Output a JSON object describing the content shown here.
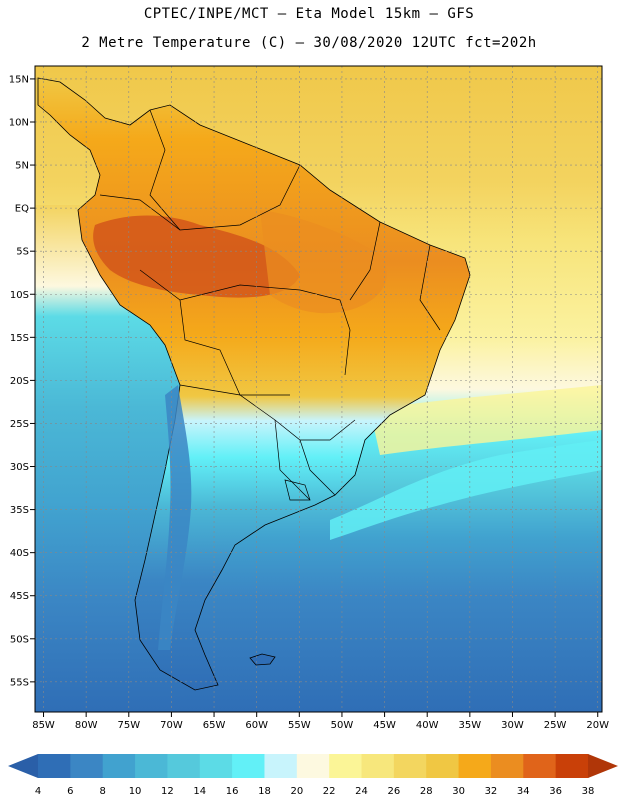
{
  "header": {
    "line1": "CPTEC/INPE/MCT  –  Eta Model 15km  –  GFS",
    "line2": "2 Metre Temperature (C) – 30/08/2020 12UTC fct=202h"
  },
  "map": {
    "lat_labels": [
      "15N",
      "10N",
      "5N",
      "EQ",
      "5S",
      "10S",
      "15S",
      "20S",
      "25S",
      "30S",
      "35S",
      "40S",
      "45S",
      "50S",
      "55S"
    ],
    "lon_labels": [
      "85W",
      "80W",
      "75W",
      "70W",
      "65W",
      "60W",
      "55W",
      "50W",
      "45W",
      "40W",
      "35W",
      "30W",
      "25W",
      "20W"
    ],
    "lat_range": [
      16.5,
      -58.5
    ],
    "lon_range": [
      -86,
      -19.5
    ]
  },
  "legend": {
    "values": [
      "4",
      "6",
      "8",
      "10",
      "12",
      "14",
      "16",
      "18",
      "20",
      "22",
      "24",
      "26",
      "28",
      "30",
      "32",
      "34",
      "36",
      "38"
    ],
    "colors": [
      "#2f6eb6",
      "#3b86c4",
      "#41a2cf",
      "#4bb8d6",
      "#55c9dc",
      "#5cdbe6",
      "#62f0f7",
      "#c8f4fc",
      "#fdf9e0",
      "#fbf597",
      "#f7e77c",
      "#f3d65f",
      "#f0c743",
      "#f5a91a",
      "#eb8d20",
      "#e0641a",
      "#c94008"
    ],
    "low_color": "#2a5fa8",
    "high_color": "#b03608"
  }
}
